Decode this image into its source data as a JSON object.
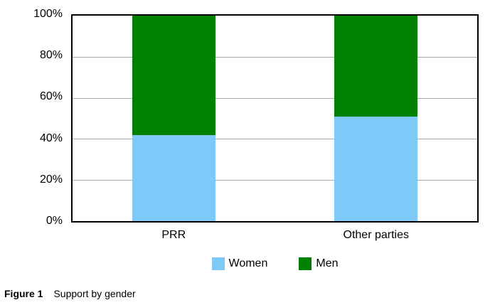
{
  "figure": {
    "caption_label": "Figure 1",
    "caption_text": "Support by gender"
  },
  "chart_data": {
    "type": "bar",
    "stacked": true,
    "title": "",
    "xlabel": "",
    "ylabel": "",
    "categories": [
      "PRR",
      "Other parties"
    ],
    "series": [
      {
        "name": "Women",
        "color": "#7EC9F7",
        "values": [
          42,
          51
        ]
      },
      {
        "name": "Men",
        "color": "#008000",
        "values": [
          58,
          49
        ]
      }
    ],
    "y_ticks": [
      "100%",
      "80%",
      "60%",
      "40%",
      "20%",
      "0%"
    ],
    "ylim": [
      0,
      100
    ],
    "gridlines": [
      80,
      60,
      40,
      20
    ],
    "grid": true,
    "legend_position": "bottom",
    "gridline_color": "#A6A6A6",
    "axis_border_color": "#000000",
    "background_color": "#FFFFFF"
  }
}
